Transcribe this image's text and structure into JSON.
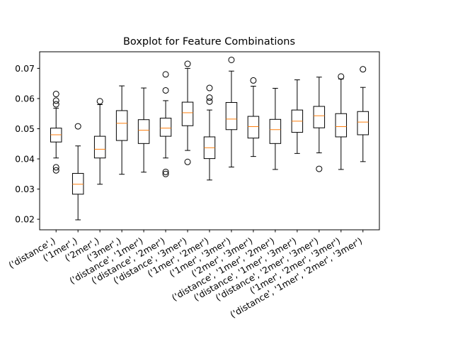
{
  "chart_data": {
    "type": "boxplot",
    "title": "Boxplot for Feature Combinations",
    "xlabel": "",
    "ylabel": "",
    "ylim": [
      0.0165,
      0.0755
    ],
    "yticks": [
      0.02,
      0.03,
      0.04,
      0.05,
      0.06,
      0.07
    ],
    "ytick_labels": [
      "0.02",
      "0.03",
      "0.04",
      "0.05",
      "0.06",
      "0.07"
    ],
    "grid": false,
    "legend": "none",
    "colors": {
      "box": "#000000",
      "median": "#ff7f0e",
      "flier": "#000000"
    },
    "categories": [
      "('distance',)",
      "('1mer',)",
      "('2mer',)",
      "('3mer',)",
      "('distance', '1mer')",
      "('distance', '2mer')",
      "('distance', '3mer')",
      "('1mer', '2mer')",
      "('1mer', '3mer')",
      "('2mer', '3mer')",
      "('distance', '1mer', '2mer')",
      "('distance', '1mer', '3mer')",
      "('distance', '2mer', '3mer')",
      "('1mer', '2mer', '3mer')",
      "('distance', '1mer', '2mer', '3mer')"
    ],
    "boxes": [
      {
        "whislo": 0.0403,
        "q1": 0.0456,
        "med": 0.048,
        "q3": 0.0502,
        "whishi": 0.0568,
        "fliers": [
          0.0615,
          0.0593,
          0.0581,
          0.0372,
          0.0362
        ]
      },
      {
        "whislo": 0.0198,
        "q1": 0.0283,
        "med": 0.0316,
        "q3": 0.0352,
        "whishi": 0.0443,
        "fliers": [
          0.0508
        ]
      },
      {
        "whislo": 0.0316,
        "q1": 0.0403,
        "med": 0.0432,
        "q3": 0.0475,
        "whishi": 0.058,
        "fliers": [
          0.0591
        ]
      },
      {
        "whislo": 0.0349,
        "q1": 0.0461,
        "med": 0.0518,
        "q3": 0.056,
        "whishi": 0.0642,
        "fliers": []
      },
      {
        "whislo": 0.0356,
        "q1": 0.0451,
        "med": 0.0495,
        "q3": 0.053,
        "whishi": 0.0635,
        "fliers": []
      },
      {
        "whislo": 0.0403,
        "q1": 0.0475,
        "med": 0.0502,
        "q3": 0.0535,
        "whishi": 0.0593,
        "fliers": [
          0.068,
          0.0627,
          0.0357,
          0.035
        ]
      },
      {
        "whislo": 0.0428,
        "q1": 0.051,
        "med": 0.0553,
        "q3": 0.0588,
        "whishi": 0.07,
        "fliers": [
          0.0715,
          0.039
        ]
      },
      {
        "whislo": 0.033,
        "q1": 0.0401,
        "med": 0.0437,
        "q3": 0.0473,
        "whishi": 0.0562,
        "fliers": [
          0.0635,
          0.0603,
          0.059
        ]
      },
      {
        "whislo": 0.0373,
        "q1": 0.0497,
        "med": 0.0532,
        "q3": 0.0587,
        "whishi": 0.0691,
        "fliers": [
          0.0728
        ]
      },
      {
        "whislo": 0.0408,
        "q1": 0.0469,
        "med": 0.0507,
        "q3": 0.0541,
        "whishi": 0.0641,
        "fliers": [
          0.066
        ]
      },
      {
        "whislo": 0.0365,
        "q1": 0.0451,
        "med": 0.0497,
        "q3": 0.0531,
        "whishi": 0.0634,
        "fliers": []
      },
      {
        "whislo": 0.0418,
        "q1": 0.0488,
        "med": 0.0525,
        "q3": 0.0562,
        "whishi": 0.0662,
        "fliers": []
      },
      {
        "whislo": 0.042,
        "q1": 0.0503,
        "med": 0.0543,
        "q3": 0.0574,
        "whishi": 0.0671,
        "fliers": [
          0.0367
        ]
      },
      {
        "whislo": 0.0365,
        "q1": 0.0473,
        "med": 0.0507,
        "q3": 0.055,
        "whishi": 0.0665,
        "fliers": [
          0.0673
        ]
      },
      {
        "whislo": 0.0391,
        "q1": 0.048,
        "med": 0.0522,
        "q3": 0.0557,
        "whishi": 0.0637,
        "fliers": [
          0.0697
        ]
      }
    ]
  }
}
